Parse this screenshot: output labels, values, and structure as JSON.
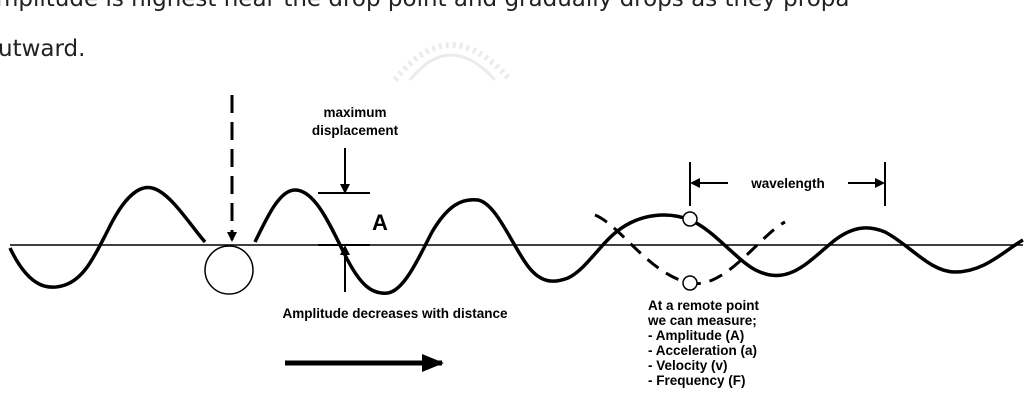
{
  "paragraph": [
    "mplitude is highest near the drop point and gradually drops as they propa",
    "utward."
  ],
  "figure": {
    "max_displacement": [
      "maximum",
      "displacement"
    ],
    "amplitude_symbol": "A",
    "wavelength": "wavelength",
    "decrease_note": "Amplitude decreases with distance",
    "measure_note": [
      "At a remote point",
      "we can measure;",
      "- Amplitude (A)",
      "- Acceleration (a)",
      "- Velocity (v)",
      "- Frequency (F)"
    ]
  }
}
